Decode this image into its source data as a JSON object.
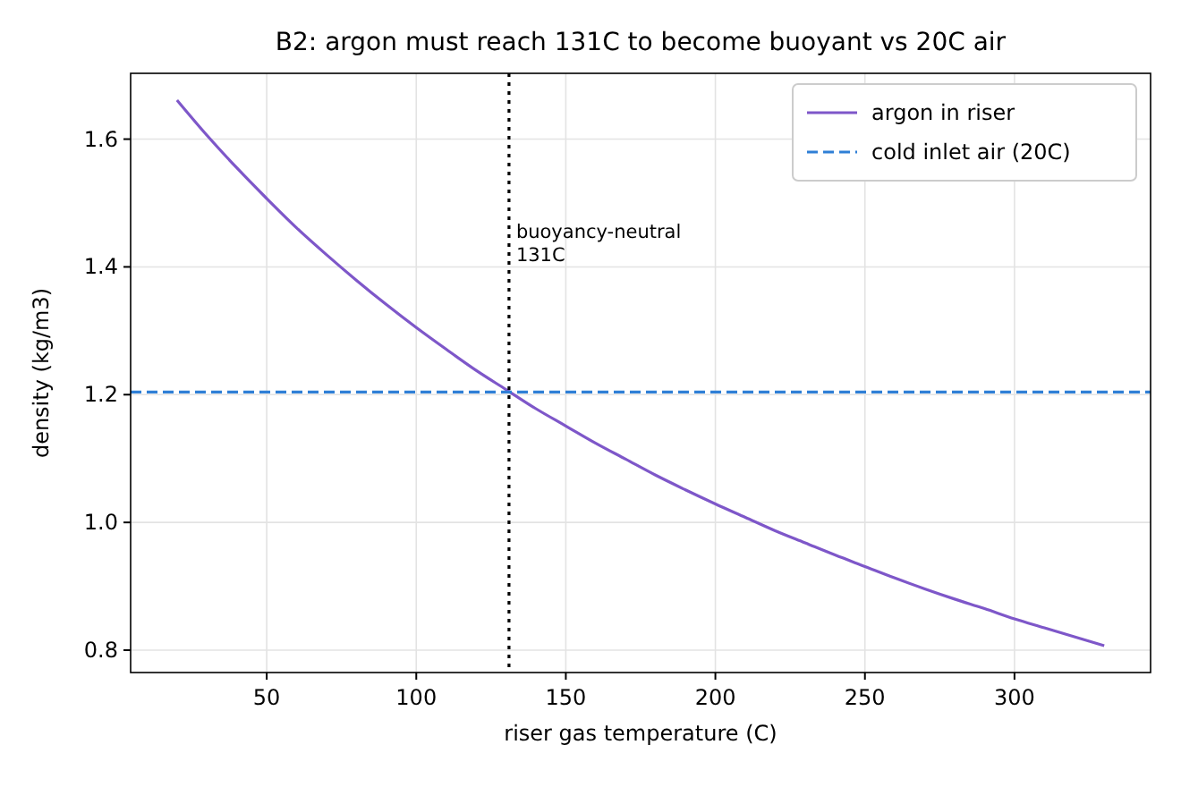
{
  "chart_data": {
    "type": "line",
    "title": "B2: argon must reach 131C to become buoyant vs 20C air",
    "xlabel": "riser gas temperature (C)",
    "ylabel": "density (kg/m3)",
    "xlim": [
      4.5,
      345.5
    ],
    "ylim": [
      0.765,
      1.703
    ],
    "xticks": [
      50,
      100,
      150,
      200,
      250,
      300
    ],
    "yticks": [
      0.8,
      {
        "value": 1.0,
        "label": "1.0"
      },
      1.2,
      1.4,
      1.6
    ],
    "grid": true,
    "legend": "top right",
    "marker": "none",
    "series": [
      {
        "name": "argon in riser",
        "color": "#7e57c9",
        "line_style": "solid",
        "x": [
          20,
          30,
          40,
          50,
          60,
          70,
          80,
          90,
          100,
          110,
          120,
          130,
          140,
          150,
          160,
          170,
          180,
          190,
          200,
          210,
          220,
          230,
          240,
          250,
          260,
          270,
          280,
          290,
          300,
          310,
          320,
          330
        ],
        "values": [
          1.661,
          1.606,
          1.555,
          1.507,
          1.461,
          1.419,
          1.379,
          1.341,
          1.305,
          1.271,
          1.238,
          1.208,
          1.178,
          1.151,
          1.124,
          1.099,
          1.074,
          1.051,
          1.029,
          1.008,
          0.987,
          0.968,
          0.949,
          0.931,
          0.913,
          0.896,
          0.88,
          0.865,
          0.849,
          0.835,
          0.821,
          0.807
        ]
      },
      {
        "name": "cold inlet air (20C)",
        "color": "#2f7fd6",
        "line_style": "dashed",
        "x": [
          4.5,
          345.5
        ],
        "values": [
          1.204,
          1.204
        ]
      }
    ],
    "ref_lines": [
      {
        "axis": "x",
        "value": 131,
        "label": "buoyancy-neutral\n131C",
        "color": "#000000",
        "line_style": "dotted"
      }
    ]
  }
}
